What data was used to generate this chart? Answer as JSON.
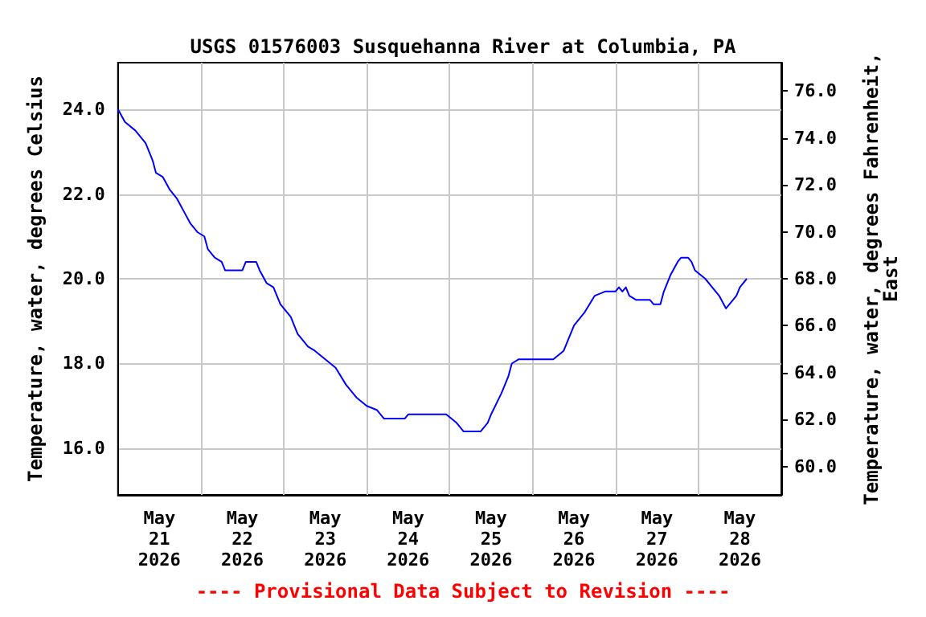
{
  "chart_data": {
    "type": "line",
    "title": "USGS 01576003 Susquehanna River at Columbia, PA",
    "ylabel": "Temperature, water, degrees Celsius",
    "y2label": "Temperature, water, degrees Fahrenheit, East",
    "annotations": [
      "---- Provisional Data Subject to Revision ----"
    ],
    "xlim": [
      "2026-05-21T00:00",
      "2026-05-29T00:00"
    ],
    "xticks": [
      {
        "value": "2026-05-21T12:00",
        "label": "May 21 2026"
      },
      {
        "value": "2026-05-22T00:00",
        "label": null
      },
      {
        "value": "2026-05-22T12:00",
        "label": "May 22 2026"
      },
      {
        "value": "2026-05-23T00:00",
        "label": null
      },
      {
        "value": "2026-05-23T12:00",
        "label": "May 23 2026"
      },
      {
        "value": "2026-05-24T00:00",
        "label": null
      },
      {
        "value": "2026-05-24T12:00",
        "label": "May 24 2026"
      },
      {
        "value": "2026-05-25T00:00",
        "label": null
      },
      {
        "value": "2026-05-25T12:00",
        "label": "May 25 2026"
      },
      {
        "value": "2026-05-26T00:00",
        "label": null
      },
      {
        "value": "2026-05-26T12:00",
        "label": "May 26 2026"
      },
      {
        "value": "2026-05-27T00:00",
        "label": null
      },
      {
        "value": "2026-05-27T12:00",
        "label": "May 27 2026"
      },
      {
        "value": "2026-05-28T00:00",
        "label": null
      },
      {
        "value": "2026-05-28T12:00",
        "label": "May 28 2026"
      }
    ],
    "ylim": [
      14.9,
      25.1
    ],
    "yticks": [
      {
        "value": 16,
        "label": "16.0"
      },
      {
        "value": 18,
        "label": "18.0"
      },
      {
        "value": 20,
        "label": "20.0"
      },
      {
        "value": 22,
        "label": "22.0"
      },
      {
        "value": 24,
        "label": "24.0"
      }
    ],
    "y2lim": [
      58.8,
      77.2
    ],
    "y2ticks": [
      {
        "value": 60,
        "label": "60.0"
      },
      {
        "value": 62,
        "label": "62.0"
      },
      {
        "value": 64,
        "label": "64.0"
      },
      {
        "value": 66,
        "label": "66.0"
      },
      {
        "value": 68,
        "label": "68.0"
      },
      {
        "value": 70,
        "label": "70.0"
      },
      {
        "value": 72,
        "label": "72.0"
      },
      {
        "value": 74,
        "label": "74.0"
      },
      {
        "value": 76,
        "label": "76.0"
      }
    ],
    "grid": true,
    "marker": "none",
    "line_style": "solid",
    "series": [
      {
        "color": "#0000ff",
        "x": [
          "2026-05-21T00:00",
          "2026-05-21T02:00",
          "2026-05-21T05:00",
          "2026-05-21T06:00",
          "2026-05-21T08:00",
          "2026-05-21T10:00",
          "2026-05-21T11:00",
          "2026-05-21T13:00",
          "2026-05-21T15:00",
          "2026-05-21T17:00",
          "2026-05-21T19:00",
          "2026-05-21T21:00",
          "2026-05-21T23:00",
          "2026-05-22T01:00",
          "2026-05-22T02:00",
          "2026-05-22T04:00",
          "2026-05-22T06:00",
          "2026-05-22T07:00",
          "2026-05-22T12:00",
          "2026-05-22T13:00",
          "2026-05-22T16:00",
          "2026-05-22T17:00",
          "2026-05-22T19:00",
          "2026-05-22T21:00",
          "2026-05-22T23:00",
          "2026-05-23T02:00",
          "2026-05-23T04:00",
          "2026-05-23T07:00",
          "2026-05-23T09:00",
          "2026-05-23T12:00",
          "2026-05-23T15:00",
          "2026-05-23T18:00",
          "2026-05-23T21:00",
          "2026-05-24T00:00",
          "2026-05-24T03:00",
          "2026-05-24T05:00",
          "2026-05-24T11:00",
          "2026-05-24T12:00",
          "2026-05-24T23:00",
          "2026-05-25T02:00",
          "2026-05-25T04:00",
          "2026-05-25T09:00",
          "2026-05-25T11:00",
          "2026-05-25T12:00",
          "2026-05-25T15:00",
          "2026-05-25T17:00",
          "2026-05-25T18:00",
          "2026-05-25T20:00",
          "2026-05-26T06:00",
          "2026-05-26T09:00",
          "2026-05-26T11:00",
          "2026-05-26T12:00",
          "2026-05-26T15:00",
          "2026-05-26T18:00",
          "2026-05-26T21:00",
          "2026-05-27T00:00",
          "2026-05-27T01:00",
          "2026-05-27T02:00",
          "2026-05-27T03:00",
          "2026-05-27T04:00",
          "2026-05-27T06:00",
          "2026-05-27T10:00",
          "2026-05-27T11:00",
          "2026-05-27T13:00",
          "2026-05-27T14:00",
          "2026-05-27T16:00",
          "2026-05-27T18:00",
          "2026-05-27T19:00",
          "2026-05-27T21:00",
          "2026-05-27T22:00",
          "2026-05-27T23:00",
          "2026-05-28T02:00",
          "2026-05-28T04:00",
          "2026-05-28T06:00",
          "2026-05-28T08:00",
          "2026-05-28T09:00",
          "2026-05-28T11:00",
          "2026-05-28T12:00",
          "2026-05-28T14:00"
        ],
        "values": [
          24.0,
          23.7,
          23.5,
          23.4,
          23.2,
          22.8,
          22.5,
          22.4,
          22.1,
          21.9,
          21.6,
          21.3,
          21.1,
          21.0,
          20.7,
          20.5,
          20.4,
          20.2,
          20.2,
          20.4,
          20.4,
          20.2,
          19.9,
          19.8,
          19.4,
          19.1,
          18.7,
          18.4,
          18.3,
          18.1,
          17.9,
          17.5,
          17.2,
          17.0,
          16.9,
          16.7,
          16.7,
          16.8,
          16.8,
          16.6,
          16.4,
          16.4,
          16.6,
          16.8,
          17.3,
          17.7,
          18.0,
          18.1,
          18.1,
          18.3,
          18.7,
          18.9,
          19.2,
          19.6,
          19.7,
          19.7,
          19.8,
          19.7,
          19.8,
          19.6,
          19.5,
          19.5,
          19.4,
          19.4,
          19.7,
          20.1,
          20.4,
          20.5,
          20.5,
          20.4,
          20.2,
          20.0,
          19.8,
          19.6,
          19.3,
          19.4,
          19.6,
          19.8,
          20.0
        ]
      }
    ]
  }
}
